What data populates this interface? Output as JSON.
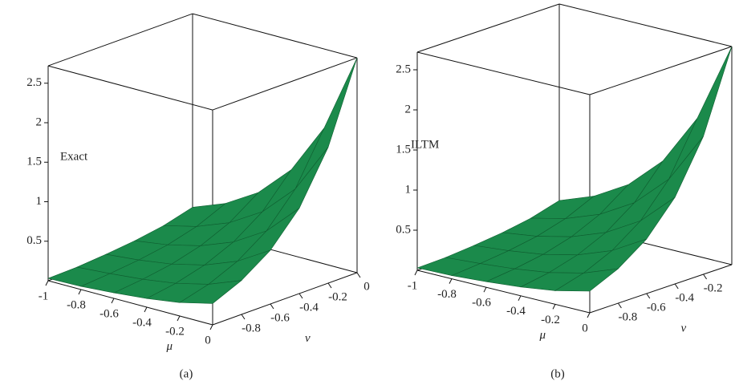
{
  "chart_data": [
    {
      "type": "surface",
      "label": "Exact",
      "caption": "(a)",
      "xlabel": "μ",
      "ylabel": "ν",
      "x": [
        -1,
        -0.8,
        -0.6,
        -0.4,
        -0.2,
        0
      ],
      "y": [
        -1,
        -0.8,
        -0.6,
        -0.4,
        -0.2,
        0
      ],
      "z": [
        [
          0.03,
          0.04,
          0.07,
          0.11,
          0.17,
          0.27
        ],
        [
          0.04,
          0.07,
          0.11,
          0.17,
          0.27,
          0.43
        ],
        [
          0.07,
          0.11,
          0.17,
          0.27,
          0.43,
          0.68
        ],
        [
          0.11,
          0.17,
          0.27,
          0.43,
          0.68,
          1.08
        ],
        [
          0.17,
          0.27,
          0.43,
          0.68,
          1.08,
          1.72
        ],
        [
          0.27,
          0.43,
          0.68,
          1.08,
          1.72,
          2.72
        ]
      ],
      "xlim": [
        -1,
        0
      ],
      "ylim": [
        -1,
        0
      ],
      "zlim": [
        0,
        2.72
      ],
      "xticks": [
        -1,
        -0.8,
        -0.6,
        -0.4,
        -0.2,
        0
      ],
      "yticks": [
        -0.8,
        -0.6,
        -0.4,
        -0.2,
        0
      ],
      "zticks": [
        0.5,
        1,
        1.5,
        2,
        2.5
      ],
      "color": "#1b8a4b"
    },
    {
      "type": "surface",
      "label": "ILTM",
      "caption": "(b)",
      "xlabel": "μ",
      "ylabel": "ν",
      "x": [
        -1,
        -0.8,
        -0.6,
        -0.4,
        -0.2,
        0
      ],
      "y": [
        -1,
        -0.8,
        -0.6,
        -0.4,
        -0.2,
        0
      ],
      "z": [
        [
          0.03,
          0.04,
          0.07,
          0.11,
          0.17,
          0.27
        ],
        [
          0.04,
          0.07,
          0.11,
          0.17,
          0.27,
          0.43
        ],
        [
          0.07,
          0.11,
          0.17,
          0.27,
          0.43,
          0.68
        ],
        [
          0.11,
          0.17,
          0.27,
          0.43,
          0.68,
          1.08
        ],
        [
          0.17,
          0.27,
          0.43,
          0.68,
          1.08,
          1.72
        ],
        [
          0.27,
          0.43,
          0.68,
          1.08,
          1.72,
          2.72
        ]
      ],
      "xlim": [
        -1,
        0
      ],
      "ylim": [
        -1,
        0
      ],
      "zlim": [
        0,
        2.72
      ],
      "xticks": [
        -1,
        -0.8,
        -0.6,
        -0.4,
        -0.2,
        0
      ],
      "yticks": [
        -0.8,
        -0.6,
        -0.4,
        -0.2
      ],
      "zticks": [
        0.5,
        1,
        1.5,
        2,
        2.5
      ],
      "color": "#1b8a4b"
    }
  ]
}
